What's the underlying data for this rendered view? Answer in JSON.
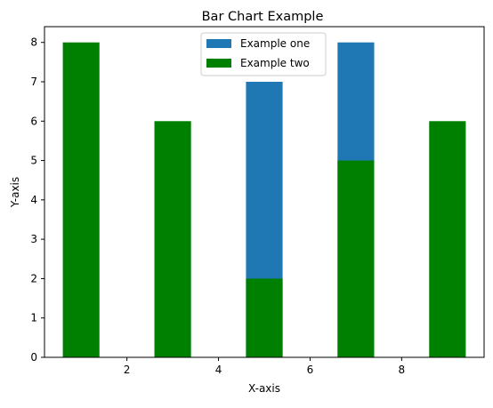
{
  "chart_data": {
    "type": "bar",
    "title": "Bar Chart Example",
    "xlabel": "X-axis",
    "ylabel": "Y-axis",
    "xlim": [
      0.2,
      9.8
    ],
    "ylim": [
      0,
      8.4
    ],
    "xticks": [
      2,
      4,
      6,
      8
    ],
    "yticks": [
      0,
      1,
      2,
      3,
      4,
      5,
      6,
      7,
      8
    ],
    "grid": false,
    "legend_position": "top-center",
    "bar_width": 0.8,
    "series": [
      {
        "name": "Example one",
        "color": "#1f77b4",
        "x": [
          5,
          7
        ],
        "values": [
          7,
          8
        ]
      },
      {
        "name": "Example two",
        "color": "#008000",
        "x": [
          1,
          3,
          5,
          7,
          9
        ],
        "values": [
          8,
          6,
          2,
          5,
          6
        ]
      }
    ]
  }
}
